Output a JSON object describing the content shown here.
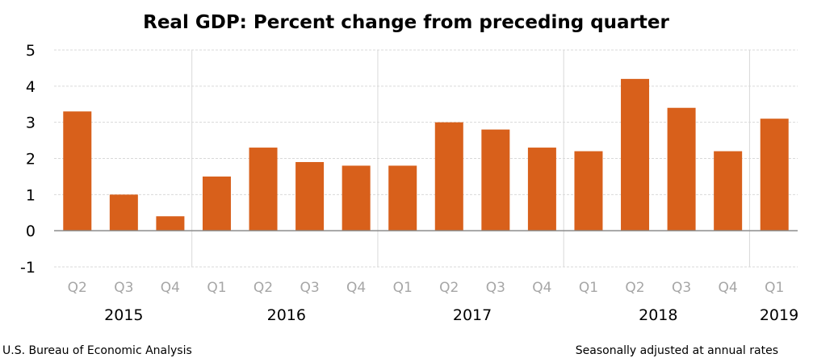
{
  "chart_data": {
    "type": "bar",
    "title": "Real GDP:  Percent change from preceding quarter",
    "categories": [
      "Q2",
      "Q3",
      "Q4",
      "Q1",
      "Q2",
      "Q3",
      "Q4",
      "Q1",
      "Q2",
      "Q3",
      "Q4",
      "Q1",
      "Q2",
      "Q3",
      "Q4",
      "Q1"
    ],
    "years": [
      {
        "label": "2015",
        "quarters": 3
      },
      {
        "label": "2016",
        "quarters": 4
      },
      {
        "label": "2017",
        "quarters": 4
      },
      {
        "label": "2018",
        "quarters": 4
      },
      {
        "label": "2019",
        "quarters": 1
      }
    ],
    "values": [
      3.3,
      1.0,
      0.4,
      1.5,
      2.3,
      1.9,
      1.8,
      1.8,
      3.0,
      2.8,
      2.3,
      2.2,
      4.2,
      3.4,
      2.2,
      3.1
    ],
    "ylim": [
      -1,
      5
    ],
    "yticks": [
      "5",
      "4",
      "3",
      "2",
      "1",
      "0",
      "-1"
    ],
    "grid": true,
    "bar_color": "#d8601b",
    "source": "U.S. Bureau of Economic Analysis",
    "note": "Seasonally adjusted at annual rates"
  }
}
